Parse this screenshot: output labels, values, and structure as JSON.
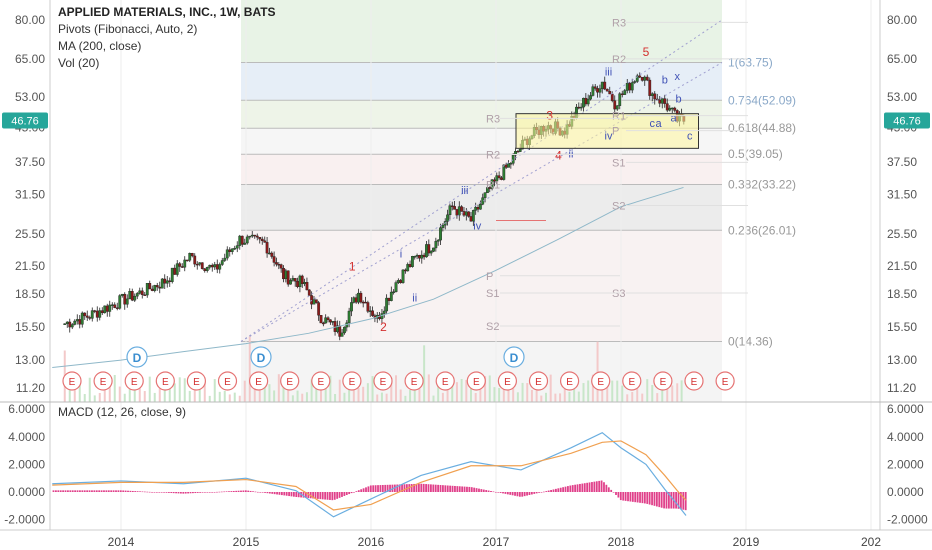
{
  "header": {
    "title": "APPLIED MATERIALS, INC., 1W, BATS",
    "indicators": [
      "Pivots (Fibonacci, Auto, 2)",
      "MA (200, close)",
      "Vol (20)"
    ],
    "macd_label": "MACD (12, 26, close, 9)"
  },
  "colors": {
    "up": "#2e7d32",
    "down": "#8b1a1a",
    "ma": "#8fb8c9",
    "fib_line": "#bbbbbb",
    "macd_line": "#6aaee0",
    "signal_line": "#f0a050",
    "histogram": "#e0408a",
    "wave_red": "#d32f2f",
    "wave_blue": "#3f51b5",
    "price_badge": "#26a69a"
  },
  "chart_data": [
    {
      "type": "candlestick",
      "title": "APPLIED MATERIALS, INC., 1W, BATS",
      "x_ticks": [
        "2014",
        "2015",
        "2016",
        "2017",
        "2018",
        "2019",
        "202"
      ],
      "y_ticks": [
        "80.00",
        "65.00",
        "53.00",
        "45.00",
        "37.50",
        "31.50",
        "25.50",
        "21.50",
        "18.50",
        "15.50",
        "13.00",
        "11.20"
      ],
      "y_scale": "log",
      "last_price": "46.76",
      "price_series": [
        {
          "date": 2013.55,
          "close": 15.8
        },
        {
          "date": 2013.75,
          "close": 16.5
        },
        {
          "date": 2013.95,
          "close": 17.6
        },
        {
          "date": 2014.15,
          "close": 18.6
        },
        {
          "date": 2014.35,
          "close": 19.8
        },
        {
          "date": 2014.55,
          "close": 22.6
        },
        {
          "date": 2014.75,
          "close": 21.0
        },
        {
          "date": 2014.95,
          "close": 24.8
        },
        {
          "date": 2015.15,
          "close": 24.3
        },
        {
          "date": 2015.3,
          "close": 20.4
        },
        {
          "date": 2015.45,
          "close": 19.6
        },
        {
          "date": 2015.6,
          "close": 16.4
        },
        {
          "date": 2015.75,
          "close": 15.1
        },
        {
          "date": 2015.9,
          "close": 18.6
        },
        {
          "date": 2016.05,
          "close": 16.2
        },
        {
          "date": 2016.2,
          "close": 19.7
        },
        {
          "date": 2016.35,
          "close": 22.3
        },
        {
          "date": 2016.5,
          "close": 24.2
        },
        {
          "date": 2016.65,
          "close": 29.5
        },
        {
          "date": 2016.8,
          "close": 27.4
        },
        {
          "date": 2016.95,
          "close": 32.4
        },
        {
          "date": 2017.1,
          "close": 36.8
        },
        {
          "date": 2017.25,
          "close": 42.4
        },
        {
          "date": 2017.4,
          "close": 45.6
        },
        {
          "date": 2017.55,
          "close": 44.4
        },
        {
          "date": 2017.7,
          "close": 51.5
        },
        {
          "date": 2017.85,
          "close": 57.5
        },
        {
          "date": 2017.95,
          "close": 51.4
        },
        {
          "date": 2018.05,
          "close": 55.5
        },
        {
          "date": 2018.15,
          "close": 60.9
        },
        {
          "date": 2018.25,
          "close": 53.8
        },
        {
          "date": 2018.35,
          "close": 51.2
        },
        {
          "date": 2018.45,
          "close": 47.0
        },
        {
          "date": 2018.52,
          "close": 46.76
        }
      ],
      "ma_series": [
        {
          "date": 2013.45,
          "value": 12.5
        },
        {
          "date": 2014.0,
          "value": 13.0
        },
        {
          "date": 2014.5,
          "value": 13.6
        },
        {
          "date": 2015.0,
          "value": 14.2
        },
        {
          "date": 2015.5,
          "value": 15.0
        },
        {
          "date": 2016.0,
          "value": 16.2
        },
        {
          "date": 2016.5,
          "value": 18.0
        },
        {
          "date": 2017.0,
          "value": 21.0
        },
        {
          "date": 2017.5,
          "value": 24.8
        },
        {
          "date": 2018.0,
          "value": 29.5
        },
        {
          "date": 2018.5,
          "value": 32.7
        }
      ],
      "fib_levels": [
        {
          "label": "1(63.75)",
          "value": 63.75
        },
        {
          "label": "0.764(52.09)",
          "value": 52.09
        },
        {
          "label": "0.618(44.88)",
          "value": 44.88
        },
        {
          "label": "0.5(39.05)",
          "value": 39.05
        },
        {
          "label": "0.382(33.22)",
          "value": 33.22
        },
        {
          "label": "0.236(26.01)",
          "value": 26.01
        },
        {
          "label": "0(14.36)",
          "value": 14.36
        }
      ],
      "pivot_labels": [
        "R3",
        "R2",
        "R1",
        "P",
        "S1",
        "S2",
        "S3",
        "R3",
        "R2",
        "R1",
        "P",
        "S1",
        "S2"
      ],
      "wave_labels_red": [
        "1",
        "2",
        "3",
        "4",
        "5"
      ],
      "wave_labels_blue": [
        "i",
        "ii",
        "iii",
        "iv",
        "iii",
        "iv",
        "ii",
        "a",
        "b",
        "c",
        "x",
        "a",
        "b",
        "c"
      ],
      "dividend_markers": [
        "D",
        "D",
        "D"
      ],
      "earnings_marker": "E"
    },
    {
      "type": "line",
      "title": "MACD (12, 26, close, 9)",
      "y_ticks": [
        "6.0000",
        "4.0000",
        "2.0000",
        "0.0000",
        "-2.0000"
      ],
      "series": [
        {
          "values_date": [
            2013.45,
            2014.0,
            2014.5,
            2015.0,
            2015.4,
            2015.7,
            2016.0,
            2016.4,
            2016.8,
            2017.2,
            2017.6,
            2017.85,
            2018.0,
            2018.2,
            2018.35,
            2018.45,
            2018.52
          ],
          "values": [
            0.6,
            0.8,
            0.6,
            1.0,
            0.1,
            -1.8,
            -0.5,
            1.2,
            2.2,
            1.6,
            3.2,
            4.3,
            3.2,
            2.0,
            0.2,
            -0.9,
            -1.7
          ]
        },
        {
          "values_date": [
            2013.45,
            2014.0,
            2014.5,
            2015.0,
            2015.4,
            2015.7,
            2016.0,
            2016.4,
            2016.8,
            2017.2,
            2017.6,
            2017.85,
            2018.0,
            2018.2,
            2018.35,
            2018.45,
            2018.52
          ],
          "values": [
            0.5,
            0.7,
            0.7,
            0.9,
            0.4,
            -1.3,
            -0.9,
            0.7,
            1.9,
            1.9,
            2.8,
            3.6,
            3.7,
            2.7,
            1.2,
            0.1,
            -0.6
          ]
        }
      ]
    }
  ]
}
